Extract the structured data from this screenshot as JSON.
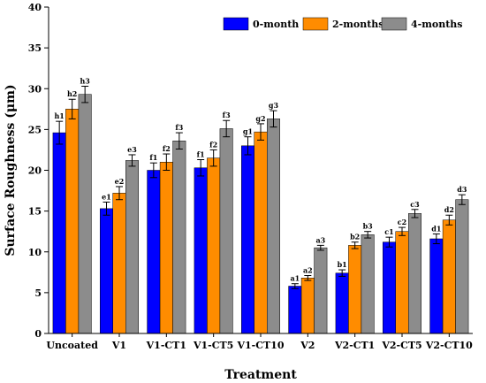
{
  "chart_data": {
    "type": "bar",
    "xlabel": "Treatment",
    "ylabel": "Surface Roughness (μm)",
    "ylim": [
      0,
      40
    ],
    "yticks": [
      0,
      5,
      10,
      15,
      20,
      25,
      30,
      35,
      40
    ],
    "categories": [
      "Uncoated",
      "V1",
      "V1-CT1",
      "V1-CT5",
      "V1-CT10",
      "V2",
      "V2-CT1",
      "V2-CT5",
      "V2-CT10"
    ],
    "series": [
      {
        "name": "0-month",
        "color": "#0000ff",
        "values": [
          24.6,
          15.3,
          20.0,
          20.3,
          23.0,
          5.8,
          7.4,
          11.2,
          11.6
        ],
        "errors": [
          1.4,
          0.8,
          0.9,
          1.0,
          1.1,
          0.3,
          0.4,
          0.6,
          0.6
        ],
        "labels": [
          "h1",
          "e1",
          "f1",
          "f1",
          "g1",
          "a1",
          "b1",
          "c1",
          "d1"
        ]
      },
      {
        "name": "2-months",
        "color": "#ff8c00",
        "values": [
          27.5,
          17.2,
          21.0,
          21.5,
          24.7,
          6.8,
          10.8,
          12.5,
          13.9
        ],
        "errors": [
          1.2,
          0.8,
          1.0,
          1.0,
          1.0,
          0.3,
          0.4,
          0.5,
          0.6
        ],
        "labels": [
          "h2",
          "e2",
          "f2",
          "f2",
          "g2",
          "a2",
          "b2",
          "c2",
          "d2"
        ]
      },
      {
        "name": "4-months",
        "color": "#8c8c8c",
        "values": [
          29.3,
          21.2,
          23.6,
          25.1,
          26.3,
          10.5,
          12.1,
          14.7,
          16.4
        ],
        "errors": [
          1.0,
          0.7,
          1.0,
          1.0,
          1.0,
          0.3,
          0.4,
          0.5,
          0.6
        ],
        "labels": [
          "h3",
          "e3",
          "f3",
          "f3",
          "g3",
          "a3",
          "b3",
          "c3",
          "d3"
        ]
      }
    ],
    "legend_position": "top-right",
    "grid": false,
    "error_bars": true
  }
}
